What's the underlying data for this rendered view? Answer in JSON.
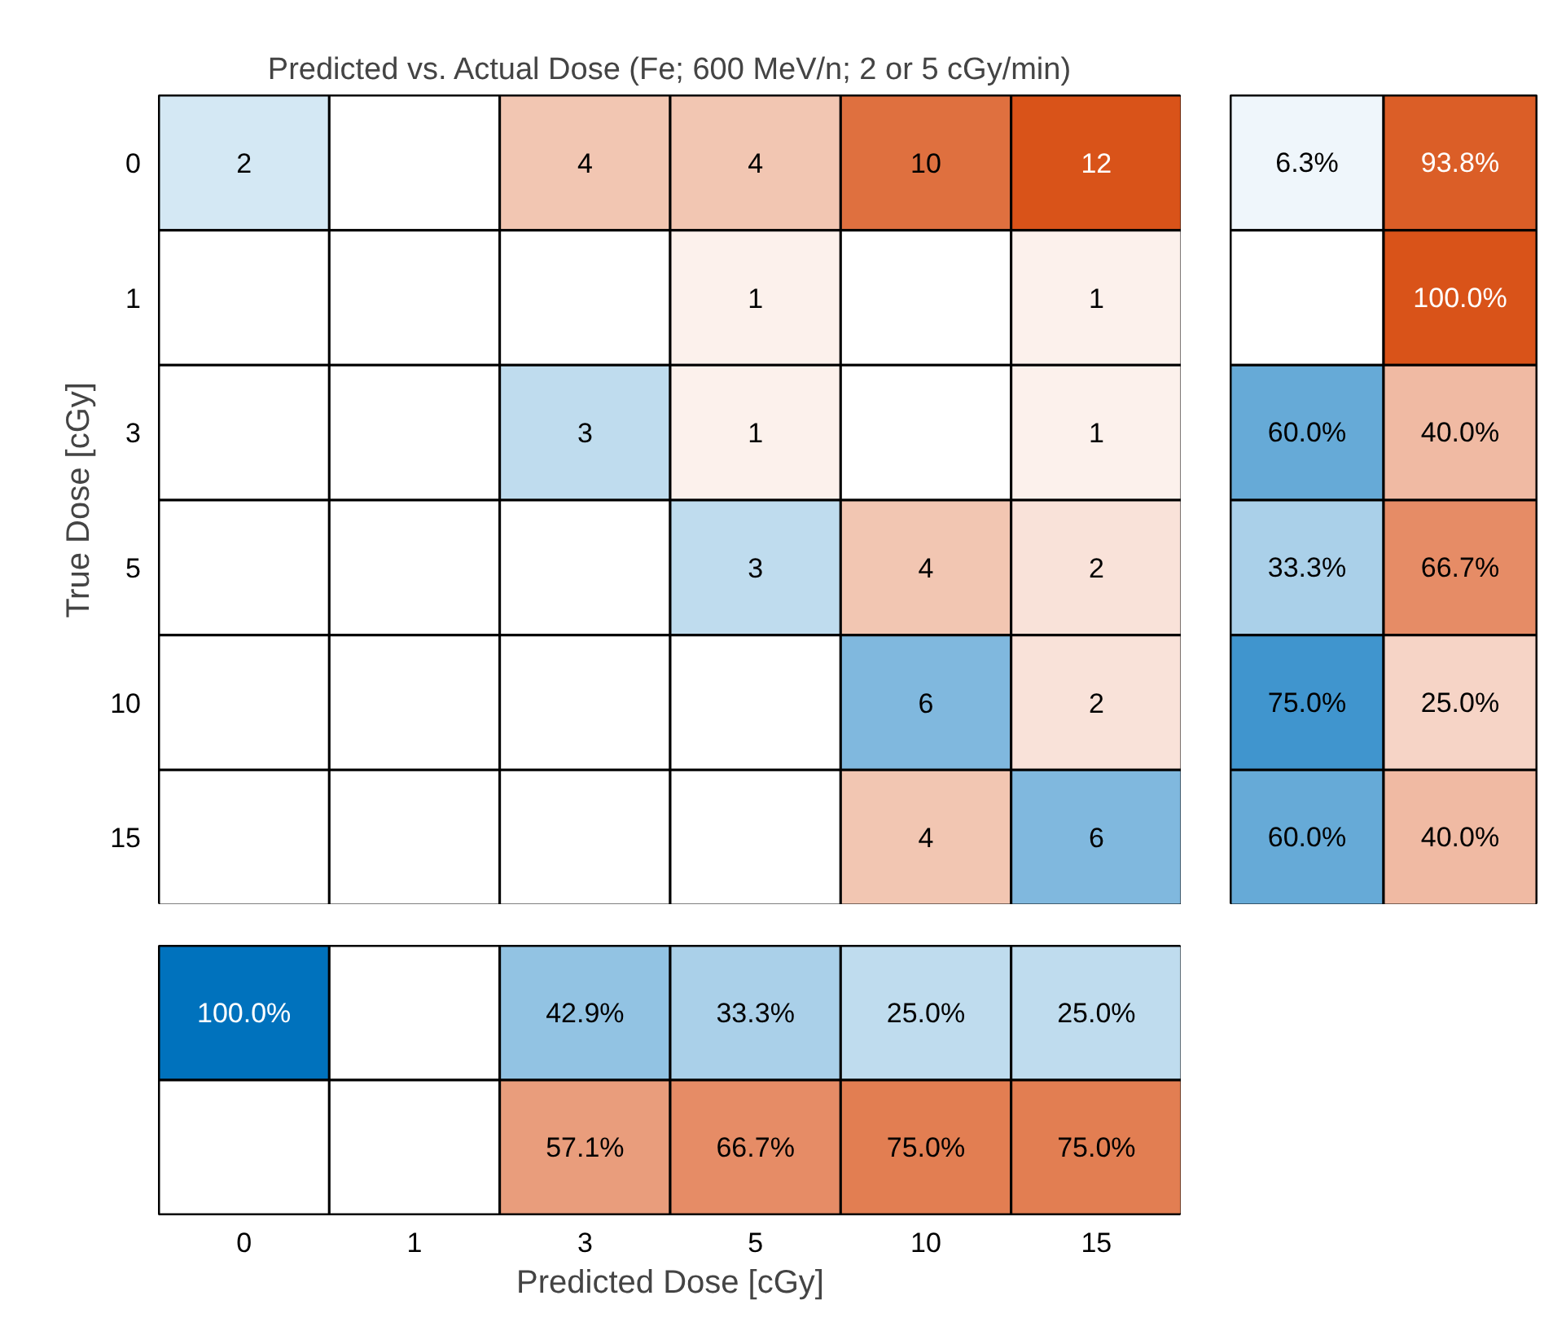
{
  "chart_data": [
    {
      "type": "heatmap",
      "title": "Predicted vs. Actual Dose (Fe; 600 MeV/n; 2 or 5 cGy/min)",
      "ylabel": "True Dose [cGy]",
      "categories": [
        "0",
        "1",
        "3",
        "5",
        "10",
        "15"
      ],
      "y_categories": [
        "0",
        "1",
        "3",
        "5",
        "10",
        "15"
      ],
      "cells": [
        [
          2,
          null,
          4,
          4,
          10,
          12
        ],
        [
          null,
          null,
          null,
          1,
          null,
          1
        ],
        [
          null,
          null,
          3,
          1,
          null,
          1
        ],
        [
          null,
          null,
          null,
          3,
          4,
          2
        ],
        [
          null,
          null,
          null,
          null,
          6,
          2
        ],
        [
          null,
          null,
          null,
          null,
          4,
          6
        ]
      ],
      "data_labels": true,
      "tick_labels": "y"
    },
    {
      "type": "heatmap",
      "categories": [
        null,
        null
      ],
      "y_categories": [
        "0",
        "1",
        "3",
        "5",
        "10",
        "15"
      ],
      "cells": [
        [
          6.3,
          93.8
        ],
        [
          null,
          100.0
        ],
        [
          60.0,
          40.0
        ],
        [
          33.3,
          66.7
        ],
        [
          75.0,
          25.0
        ],
        [
          60.0,
          40.0
        ]
      ],
      "cell_labels": [
        [
          "6.3%",
          "93.8%"
        ],
        [
          null,
          "100.0%"
        ],
        [
          "60.0%",
          "40.0%"
        ],
        [
          "33.3%",
          "66.7%"
        ],
        [
          "75.0%",
          "25.0%"
        ],
        [
          "60.0%",
          "40.0%"
        ]
      ],
      "tick_labels": false
    },
    {
      "type": "heatmap",
      "xlabel": "Predicted Dose [cGy]",
      "categories": [
        "0",
        "1",
        "3",
        "5",
        "10",
        "15"
      ],
      "y_categories": [
        null,
        null
      ],
      "cells": [
        [
          100.0,
          null,
          42.9,
          33.3,
          25.0,
          25.0
        ],
        [
          null,
          null,
          57.1,
          66.7,
          75.0,
          75.0
        ]
      ],
      "cell_labels": [
        [
          "100.0%",
          null,
          "42.9%",
          "33.3%",
          "25.0%",
          "25.0%"
        ],
        [
          null,
          null,
          "57.1%",
          "66.7%",
          "75.0%",
          "75.0%"
        ]
      ],
      "tick_labels": "x"
    }
  ]
}
